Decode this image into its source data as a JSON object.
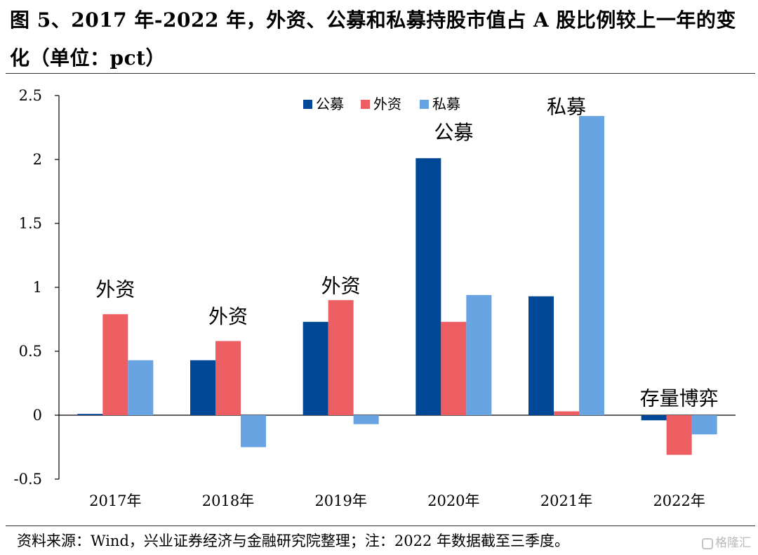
{
  "figure": {
    "title": "图 5、2017 年-2022 年，外资、公募和私募持股市值占 A 股比例较上一年的变化（单位：pct）",
    "source": "资料来源：Wind，兴业证券经济与金融研究院整理；注：2022 年数据截至三季度。",
    "watermark": "格隆汇"
  },
  "chart_data": {
    "type": "bar",
    "categories": [
      "2017年",
      "2018年",
      "2019年",
      "2020年",
      "2021年",
      "2022年"
    ],
    "series": [
      {
        "name": "公募",
        "color": "#004896",
        "values": [
          0.01,
          0.43,
          0.73,
          2.01,
          0.93,
          -0.04
        ]
      },
      {
        "name": "外资",
        "color": "#ED5E63",
        "values": [
          0.79,
          0.58,
          0.9,
          0.73,
          0.03,
          -0.31
        ]
      },
      {
        "name": "私募",
        "color": "#69A4E2",
        "values": [
          0.43,
          -0.25,
          -0.07,
          0.94,
          2.34,
          -0.15
        ]
      }
    ],
    "ylim": [
      -0.5,
      2.5
    ],
    "yticks": [
      -0.5,
      0,
      0.5,
      1,
      1.5,
      2,
      2.5
    ],
    "ytick_labels": [
      "-0.5",
      "0",
      "0.5",
      "1",
      "1.5",
      "2",
      "2.5"
    ],
    "grid": false,
    "legend_position": "top-center",
    "annotations": [
      {
        "text": "外资",
        "category": 0,
        "y": 0.93
      },
      {
        "text": "外资",
        "category": 1,
        "y": 0.72
      },
      {
        "text": "外资",
        "category": 2,
        "y": 0.96
      },
      {
        "text": "公募",
        "category": 3,
        "y": 2.16
      },
      {
        "text": "私募",
        "category": 4,
        "y": 2.36
      },
      {
        "text": "存量博弈",
        "category": 5,
        "y": 0.08
      }
    ]
  }
}
